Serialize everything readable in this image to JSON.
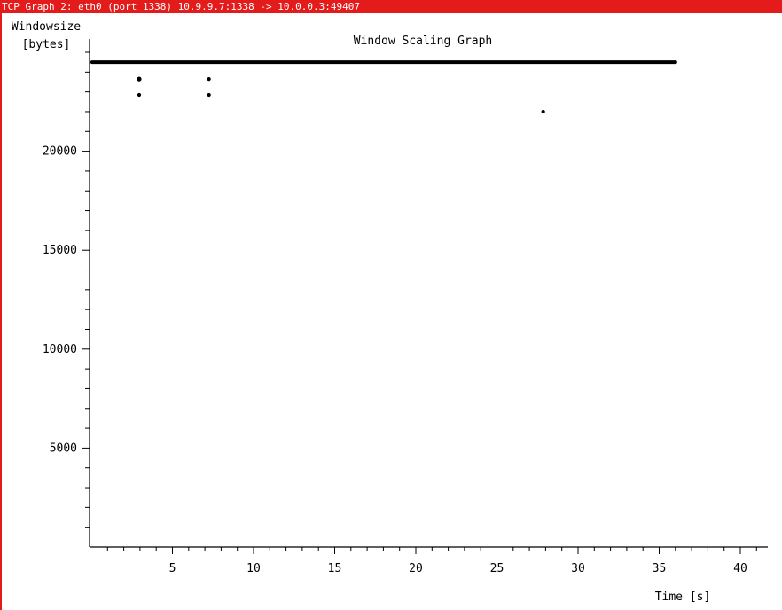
{
  "window": {
    "title": "TCP Graph 2: eth0 (port 1338) 10.9.9.7:1338 -> 10.0.0.3:49407"
  },
  "colors": {
    "titlebar": "#e31b1b",
    "foreground": "#000000",
    "background": "#ffffff"
  },
  "chart_data": {
    "type": "scatter",
    "title": "Window Scaling Graph",
    "ylabel_line1": "Windowsize",
    "ylabel_line2": "[bytes]",
    "xlabel": "Time [s]",
    "xlim": [
      0,
      41
    ],
    "ylim": [
      0,
      25500
    ],
    "xticks_major": [
      5,
      10,
      15,
      20,
      25,
      30,
      35,
      40
    ],
    "xtick_labels": [
      "5",
      "10",
      "15",
      "20",
      "25",
      "30",
      "35",
      "40"
    ],
    "xticks_minor_step": 1,
    "yticks_major": [
      5000,
      10000,
      15000,
      20000
    ],
    "ytick_labels": [
      "5000",
      "10000",
      "15000",
      "20000"
    ],
    "yticks_minor_step": 1000,
    "grid": false,
    "series": [
      {
        "name": "window-size-line",
        "kind": "line",
        "x": [
          0.05,
          36.0
        ],
        "y": [
          24500,
          24500
        ]
      },
      {
        "name": "window-size-points",
        "kind": "points",
        "x": [
          2.95,
          2.95,
          7.25,
          7.25,
          27.85
        ],
        "y": [
          23650,
          22850,
          23650,
          22850,
          22000
        ]
      }
    ]
  }
}
